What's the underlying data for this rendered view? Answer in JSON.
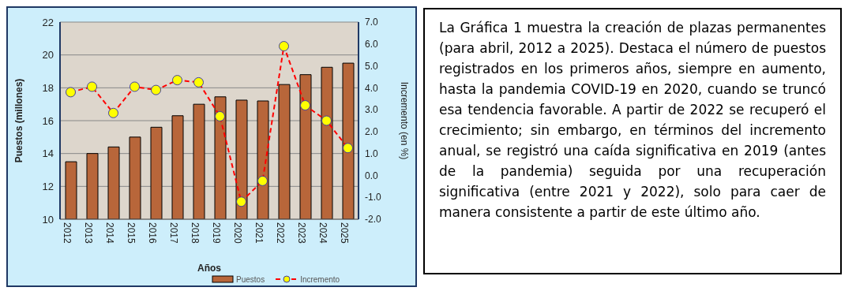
{
  "chart_data": [
    {
      "type": "bar",
      "xlabel": "Años",
      "ylabel": "Puestos (millones)",
      "y2label": "Incremento (en %)",
      "categories": [
        "2012",
        "2013",
        "2014",
        "2015",
        "2016",
        "2017",
        "2018",
        "2019",
        "2020",
        "2021",
        "2022",
        "2023",
        "2024",
        "2025"
      ],
      "series": [
        {
          "name": "Puestos",
          "type": "bar",
          "color": "#b8663a",
          "values": [
            13.5,
            14.0,
            14.4,
            15.0,
            15.6,
            16.3,
            17.0,
            17.45,
            17.25,
            17.2,
            18.2,
            18.8,
            19.25,
            19.5
          ]
        },
        {
          "name": "Incremento",
          "type": "line",
          "axis": "y2",
          "color": "#ff0000",
          "values": [
            3.8,
            4.05,
            2.85,
            4.05,
            3.9,
            4.35,
            4.25,
            2.7,
            -1.2,
            -0.25,
            5.9,
            3.2,
            2.5,
            1.25
          ]
        }
      ],
      "ylim": [
        10,
        22
      ],
      "yticks": [
        10,
        12,
        14,
        16,
        18,
        20,
        22
      ],
      "y2lim": [
        -2,
        7
      ],
      "y2ticks": [
        {
          "value": -2,
          "label": "-2.0"
        },
        {
          "value": -1,
          "label": "-1.0"
        },
        {
          "value": 0,
          "label": "0.0"
        },
        {
          "value": 1,
          "label": "1.0"
        },
        {
          "value": 2,
          "label": "2.0"
        },
        {
          "value": 3,
          "label": "3.0"
        },
        {
          "value": 4,
          "label": "4.0"
        },
        {
          "value": 5,
          "label": "5.0"
        },
        {
          "value": 6,
          "label": "6.0"
        },
        {
          "value": 7,
          "label": "7.0"
        }
      ],
      "grid": "y",
      "legend": "bottom",
      "marker": "circle",
      "line_style": "dashed"
    },
    {
      "type": "other",
      "annotations": [
        "La Gráfica 1 muestra la creación de plazas permanentes (para abril, 2012 a 2025). Destaca el número de puestos registrados en los primeros años, siempre en aumento, hasta la pandemia COVID-19 en 2020, cuando se truncó esa tendencia favorable. A partir de 2022 se recuperó el crecimiento; sin embargo, en términos del incremento anual, se registró una caída significativa en 2019 (antes de la pandemia) seguida por una recuperación significativa (entre 2021 y 2022), solo para caer de manera consistente a partir de este último año."
      ]
    }
  ]
}
